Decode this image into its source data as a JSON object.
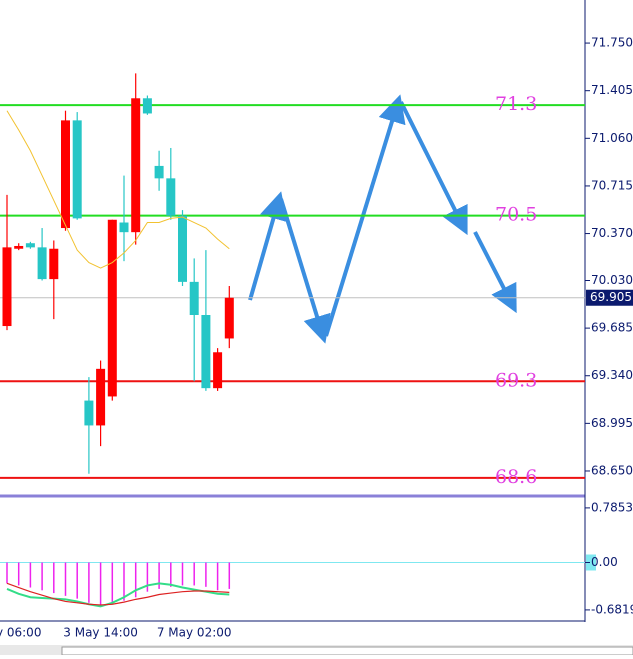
{
  "chart_data": [
    {
      "type": "candlestick",
      "categories": [
        null,
        "y 06:00",
        null,
        null,
        null,
        null,
        null,
        null,
        "3 May 14:00",
        null,
        null,
        null,
        null,
        null,
        null,
        null,
        "7 May 02:00",
        null,
        null,
        null
      ],
      "open": [
        69.7,
        70.26,
        70.3,
        70.27,
        70.04,
        70.41,
        71.19,
        69.16,
        68.98,
        69.19,
        70.45,
        70.38,
        71.35,
        70.86,
        70.77,
        70.5,
        70.02,
        69.78,
        69.25,
        69.61
      ],
      "high": [
        70.65,
        70.3,
        70.31,
        70.41,
        70.32,
        71.26,
        71.25,
        69.33,
        69.45,
        70.47,
        70.79,
        71.53,
        71.37,
        70.97,
        70.99,
        70.54,
        70.19,
        70.25,
        69.54,
        69.99
      ],
      "low": [
        69.67,
        70.25,
        70.26,
        70.03,
        69.75,
        70.39,
        70.47,
        68.63,
        68.83,
        69.16,
        70.17,
        70.29,
        71.23,
        70.68,
        70.47,
        69.99,
        69.3,
        69.23,
        69.23,
        69.54
      ],
      "close": [
        70.27,
        70.28,
        70.27,
        70.04,
        70.26,
        71.19,
        70.48,
        68.98,
        69.39,
        70.47,
        70.38,
        71.35,
        71.24,
        70.77,
        70.5,
        70.02,
        69.78,
        69.25,
        69.51,
        69.905
      ],
      "up_color": "#ff0000",
      "down_color": "#26c6c6",
      "series": [
        {
          "color": "#f2c230",
          "values": [
            71.26,
            71.12,
            70.97,
            70.79,
            70.61,
            70.43,
            70.25,
            70.16,
            70.12,
            70.16,
            70.23,
            70.32,
            70.45,
            70.45,
            70.48,
            70.49,
            70.45,
            70.41,
            70.33,
            70.26
          ]
        }
      ],
      "levels": [
        {
          "value": 71.3,
          "color": "#22dd22"
        },
        {
          "value": 70.5,
          "color": "#22dd22"
        },
        {
          "value": 69.3,
          "color": "#ee1111"
        },
        {
          "value": 68.6,
          "color": "#ee1111"
        }
      ],
      "last": 69.905,
      "ylim": [
        68.476,
        72.062
      ],
      "yticks": [
        {
          "value": 71.75,
          "label": "71.750"
        },
        71.405,
        {
          "value": 71.06,
          "label": "71.060"
        },
        70.715,
        {
          "value": 70.37,
          "label": "70.370"
        },
        {
          "value": 70.03,
          "label": "70.030"
        },
        69.685,
        {
          "value": 69.34,
          "label": "69.340"
        },
        68.995,
        {
          "value": 68.65,
          "label": "68.650"
        }
      ],
      "grid": false
    },
    {
      "type": "macd",
      "values": [
        -0.3,
        -0.33,
        -0.36,
        -0.4,
        -0.44,
        -0.48,
        -0.52,
        -0.58,
        -0.62,
        -0.6,
        -0.55,
        -0.5,
        -0.42,
        -0.38,
        -0.35,
        -0.33,
        -0.33,
        -0.35,
        -0.4,
        -0.38
      ],
      "color": "#ee22ee",
      "series": [
        {
          "color": "#33dd88",
          "values": [
            -0.38,
            -0.45,
            -0.5,
            -0.51,
            -0.52,
            -0.53,
            -0.56,
            -0.6,
            -0.63,
            -0.58,
            -0.5,
            -0.4,
            -0.33,
            -0.3,
            -0.32,
            -0.36,
            -0.39,
            -0.42,
            -0.45,
            -0.46
          ]
        },
        {
          "color": "#dd2222",
          "values": [
            -0.3,
            -0.36,
            -0.42,
            -0.47,
            -0.52,
            -0.56,
            -0.58,
            -0.6,
            -0.61,
            -0.6,
            -0.57,
            -0.53,
            -0.5,
            -0.46,
            -0.44,
            -0.42,
            -0.41,
            -0.41,
            -0.42,
            -0.43
          ]
        }
      ],
      "ylim": [
        -0.827,
        0.942
      ],
      "yticks": [
        0.7853,
        {
          "value": 0,
          "label": "0.00"
        },
        -0.6819
      ]
    }
  ]
}
